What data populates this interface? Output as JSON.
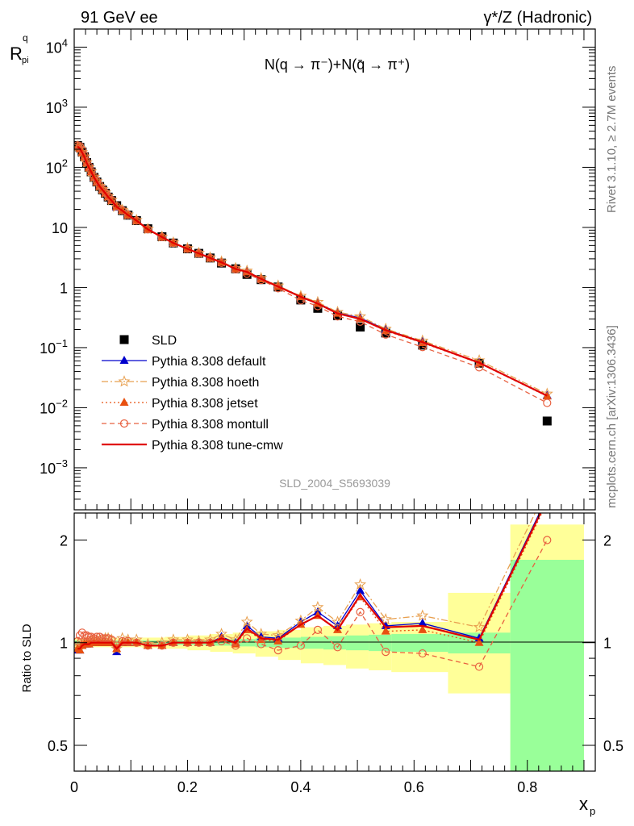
{
  "header": {
    "left": "91 GeV ee",
    "right": "γ*/Z (Hadronic)"
  },
  "ylabel_main": "R",
  "ylabel_main_sup": "q",
  "ylabel_main_sub": "pi",
  "ylabel_ratio": "Ratio to SLD",
  "xlabel": "x",
  "xlabel_sub": "p",
  "process_label": "N(q → π⁻)+N(q̄ → π⁺)",
  "side_rivet": "Rivet 3.1.10, ≥ 2.7M events",
  "side_mcplots": "mcplots.cern.ch [arXiv:1306.3436]",
  "analysis_id": "SLD_2004_S5693039",
  "colors": {
    "data": "#000000",
    "default": "#0000cc",
    "hoeth": "#e8a050",
    "jetset": "#e85010",
    "montull": "#e86040",
    "tunecmw": "#e00000",
    "band_stat": "#99ff99",
    "band_total": "#ffff99"
  },
  "chart_data": [
    {
      "type": "scatter",
      "panel": "main",
      "yscale": "log",
      "xlim": [
        0,
        0.92
      ],
      "ylim": [
        0.0002,
        20000
      ],
      "x_ticks": [
        "0",
        "0.2",
        "0.4",
        "0.6",
        "0.8"
      ],
      "y_ticks": [
        "10^-3",
        "10^-2",
        "10^-1",
        "1",
        "10",
        "10^2",
        "10^3",
        "10^4"
      ],
      "x": [
        0.006,
        0.01,
        0.014,
        0.018,
        0.022,
        0.026,
        0.03,
        0.035,
        0.04,
        0.045,
        0.05,
        0.055,
        0.06,
        0.066,
        0.075,
        0.085,
        0.095,
        0.11,
        0.13,
        0.155,
        0.175,
        0.2,
        0.22,
        0.24,
        0.26,
        0.285,
        0.305,
        0.33,
        0.36,
        0.4,
        0.43,
        0.465,
        0.505,
        0.55,
        0.615,
        0.715,
        0.835
      ],
      "series": [
        {
          "name": "SLD",
          "marker": "square",
          "values": [
            230,
            215,
            180,
            150,
            120,
            100,
            84,
            68,
            57,
            48,
            42,
            37,
            32,
            28,
            23,
            19,
            16,
            13,
            9.5,
            7.0,
            5.5,
            4.4,
            3.7,
            3.1,
            2.55,
            2.05,
            1.65,
            1.35,
            1.02,
            0.62,
            0.45,
            0.34,
            0.22,
            0.175,
            0.11,
            0.055,
            0.006
          ]
        },
        {
          "name": "Pythia 8.308 default",
          "marker": "triangle",
          "values": [
            218,
            204,
            176,
            148,
            119,
            99,
            84,
            68,
            57,
            48,
            42,
            37,
            32,
            28,
            21.5,
            19,
            16,
            13,
            9.3,
            6.9,
            5.5,
            4.4,
            3.7,
            3.1,
            2.65,
            2.05,
            1.85,
            1.4,
            1.05,
            0.71,
            0.55,
            0.38,
            0.31,
            0.2,
            0.125,
            0.056,
            0.016
          ]
        },
        {
          "name": "Pythia 8.308 hoeth",
          "marker": "star",
          "values": [
            222,
            207,
            178,
            150,
            120,
            100,
            85,
            69,
            58,
            49,
            43,
            38,
            33,
            28.5,
            22,
            19.5,
            16.3,
            13.2,
            9.4,
            7.0,
            5.6,
            4.5,
            3.75,
            3.15,
            2.7,
            2.1,
            1.9,
            1.43,
            1.07,
            0.72,
            0.57,
            0.39,
            0.33,
            0.205,
            0.13,
            0.061,
            0.017
          ]
        },
        {
          "name": "Pythia 8.308 jetset",
          "marker": "triangle",
          "values": [
            220,
            205,
            177,
            149,
            119,
            99,
            84,
            68,
            57,
            48,
            42,
            37,
            32,
            28,
            22,
            19,
            16,
            13,
            9.3,
            6.9,
            5.5,
            4.4,
            3.7,
            3.1,
            2.62,
            2.03,
            1.8,
            1.38,
            1.03,
            0.7,
            0.54,
            0.37,
            0.3,
            0.19,
            0.12,
            0.055,
            0.0155
          ]
        },
        {
          "name": "Pythia 8.308 montull",
          "marker": "circle-open",
          "values": [
            232,
            225,
            192,
            158,
            126,
            104,
            87,
            70,
            59,
            50,
            43,
            38,
            33,
            28.5,
            22.5,
            19.2,
            16.1,
            13,
            9.3,
            6.9,
            5.5,
            4.4,
            3.7,
            3.1,
            2.57,
            2.0,
            1.7,
            1.33,
            0.97,
            0.61,
            0.49,
            0.33,
            0.27,
            0.165,
            0.102,
            0.047,
            0.012
          ]
        },
        {
          "name": "Pythia 8.308 tune-cmw",
          "marker": "line",
          "values": [
            221,
            206,
            177,
            149,
            119,
            99,
            84,
            68,
            57,
            48,
            42,
            37,
            32,
            28,
            22,
            19,
            16,
            13,
            9.3,
            6.9,
            5.5,
            4.4,
            3.7,
            3.1,
            2.62,
            2.04,
            1.82,
            1.39,
            1.04,
            0.7,
            0.54,
            0.37,
            0.3,
            0.195,
            0.123,
            0.056,
            0.0158
          ]
        }
      ]
    },
    {
      "type": "line",
      "panel": "ratio",
      "yscale": "log",
      "xlim": [
        0,
        0.92
      ],
      "ylim": [
        0.42,
        2.4
      ],
      "y_ticks": [
        "0.5",
        "1",
        "2"
      ],
      "bands": {
        "x_edges": [
          0.0,
          0.04,
          0.08,
          0.12,
          0.16,
          0.2,
          0.24,
          0.28,
          0.32,
          0.36,
          0.4,
          0.44,
          0.48,
          0.52,
          0.56,
          0.66,
          0.77,
          0.9
        ],
        "stat_lo": [
          0.985,
          0.985,
          0.985,
          0.985,
          0.985,
          0.985,
          0.98,
          0.975,
          0.97,
          0.965,
          0.96,
          0.955,
          0.95,
          0.945,
          0.94,
          0.93,
          0.38
        ],
        "stat_hi": [
          1.015,
          1.015,
          1.015,
          1.015,
          1.015,
          1.015,
          1.02,
          1.025,
          1.03,
          1.035,
          1.04,
          1.045,
          1.05,
          1.055,
          1.06,
          1.07,
          1.75
        ],
        "total_lo": [
          0.97,
          0.97,
          0.97,
          0.965,
          0.96,
          0.95,
          0.94,
          0.93,
          0.91,
          0.89,
          0.87,
          0.86,
          0.84,
          0.83,
          0.82,
          0.71,
          0.38
        ],
        "total_hi": [
          1.03,
          1.03,
          1.03,
          1.035,
          1.04,
          1.05,
          1.06,
          1.07,
          1.08,
          1.09,
          1.11,
          1.12,
          1.13,
          1.14,
          1.15,
          1.4,
          2.22
        ]
      },
      "x": [
        0.006,
        0.01,
        0.014,
        0.018,
        0.022,
        0.026,
        0.03,
        0.035,
        0.04,
        0.045,
        0.05,
        0.055,
        0.06,
        0.066,
        0.075,
        0.085,
        0.095,
        0.11,
        0.13,
        0.155,
        0.175,
        0.2,
        0.22,
        0.24,
        0.26,
        0.285,
        0.305,
        0.33,
        0.36,
        0.4,
        0.43,
        0.465,
        0.505,
        0.55,
        0.615,
        0.715,
        0.835
      ],
      "series": [
        {
          "name": "Pythia 8.308 default",
          "values": [
            0.95,
            0.95,
            0.98,
            0.99,
            0.99,
            0.99,
            1.0,
            1.0,
            1.0,
            1.0,
            1.0,
            1.0,
            1.0,
            1.0,
            0.94,
            1.0,
            1.0,
            1.0,
            0.98,
            0.98,
            1.0,
            1.0,
            1.0,
            1.0,
            1.04,
            1.0,
            1.12,
            1.04,
            1.03,
            1.15,
            1.23,
            1.12,
            1.42,
            1.12,
            1.14,
            1.03,
            2.67
          ]
        },
        {
          "name": "Pythia 8.308 hoeth",
          "values": [
            0.97,
            0.96,
            0.99,
            1.0,
            1.0,
            1.0,
            1.01,
            1.01,
            1.02,
            1.02,
            1.02,
            1.03,
            1.03,
            1.02,
            0.96,
            1.03,
            1.02,
            1.02,
            0.99,
            1.0,
            1.02,
            1.02,
            1.01,
            1.02,
            1.06,
            1.02,
            1.15,
            1.06,
            1.05,
            1.16,
            1.27,
            1.15,
            1.48,
            1.17,
            1.2,
            1.11,
            2.83
          ]
        },
        {
          "name": "Pythia 8.308 jetset",
          "values": [
            0.96,
            0.95,
            0.98,
            0.99,
            0.99,
            0.99,
            1.0,
            1.0,
            1.0,
            1.0,
            1.0,
            1.0,
            1.0,
            1.0,
            0.96,
            1.0,
            1.0,
            1.0,
            0.98,
            0.98,
            1.0,
            1.0,
            1.0,
            1.0,
            1.03,
            0.99,
            1.09,
            1.02,
            1.01,
            1.13,
            1.2,
            1.09,
            1.36,
            1.08,
            1.09,
            1.0,
            2.58
          ]
        },
        {
          "name": "Pythia 8.308 montull",
          "values": [
            1.01,
            1.05,
            1.07,
            1.05,
            1.05,
            1.04,
            1.04,
            1.03,
            1.04,
            1.04,
            1.03,
            1.03,
            1.03,
            1.02,
            0.98,
            1.01,
            1.01,
            1.0,
            0.98,
            0.98,
            1.0,
            1.0,
            1.0,
            1.0,
            1.01,
            0.98,
            1.03,
            0.99,
            0.95,
            0.98,
            1.09,
            0.97,
            1.23,
            0.94,
            0.93,
            0.85,
            2.0
          ]
        },
        {
          "name": "Pythia 8.308 tune-cmw",
          "values": [
            0.96,
            0.96,
            0.98,
            0.99,
            0.99,
            0.99,
            1.0,
            1.0,
            1.0,
            1.0,
            1.0,
            1.0,
            1.0,
            1.0,
            0.96,
            1.0,
            1.0,
            1.0,
            0.98,
            0.98,
            1.0,
            1.0,
            1.0,
            1.0,
            1.03,
            1.0,
            1.1,
            1.03,
            1.02,
            1.13,
            1.2,
            1.09,
            1.38,
            1.11,
            1.12,
            1.02,
            2.63
          ]
        }
      ]
    }
  ]
}
